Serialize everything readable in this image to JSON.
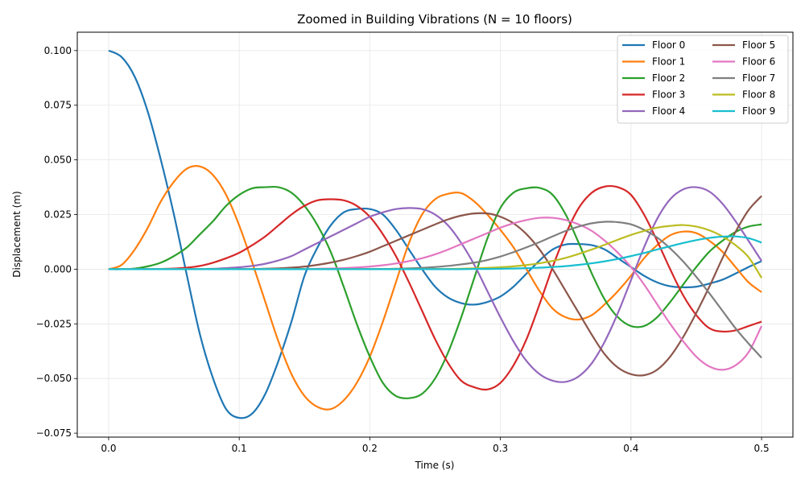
{
  "chart_data": {
    "type": "line",
    "title": "Zoomed in Building Vibrations (N = 10 floors)",
    "xlabel": "Time (s)",
    "ylabel": "Displacement (m)",
    "xlim": [
      -0.024,
      0.524
    ],
    "ylim": [
      -0.0768,
      0.1084
    ],
    "xticks": [
      0.0,
      0.1,
      0.2,
      0.3,
      0.4,
      0.5
    ],
    "xtick_labels": [
      "0.0",
      "0.1",
      "0.2",
      "0.3",
      "0.4",
      "0.5"
    ],
    "yticks": [
      -0.075,
      -0.05,
      -0.025,
      0.0,
      0.025,
      0.05,
      0.075,
      0.1
    ],
    "ytick_labels": [
      "−0.075",
      "−0.050",
      "−0.025",
      "0.000",
      "0.025",
      "0.050",
      "0.075",
      "0.100"
    ],
    "grid": true,
    "legend_position": "top-right",
    "legend_columns": 2,
    "x": [
      0.0,
      0.01,
      0.02,
      0.03,
      0.04,
      0.05,
      0.06,
      0.07,
      0.08,
      0.09,
      0.1,
      0.11,
      0.12,
      0.13,
      0.14,
      0.15,
      0.16,
      0.17,
      0.18,
      0.19,
      0.2,
      0.21,
      0.22,
      0.23,
      0.24,
      0.25,
      0.26,
      0.27,
      0.28,
      0.29,
      0.3,
      0.31,
      0.32,
      0.33,
      0.34,
      0.35,
      0.36,
      0.37,
      0.38,
      0.39,
      0.4,
      0.41,
      0.42,
      0.43,
      0.44,
      0.45,
      0.46,
      0.47,
      0.48,
      0.49,
      0.5
    ],
    "series": [
      {
        "name": "Floor 0",
        "color": "#1f77b4",
        "values": [
          0.1,
          0.097,
          0.088,
          0.072,
          0.05,
          0.025,
          -0.003,
          -0.03,
          -0.05,
          -0.064,
          -0.068,
          -0.066,
          -0.057,
          -0.042,
          -0.024,
          -0.003,
          0.01,
          0.02,
          0.026,
          0.0275,
          0.0275,
          0.025,
          0.018,
          0.009,
          0.0,
          -0.008,
          -0.013,
          -0.0155,
          -0.0162,
          -0.015,
          -0.0125,
          -0.008,
          -0.002,
          0.004,
          0.009,
          0.0113,
          0.0115,
          0.011,
          0.009,
          0.005,
          0.001,
          -0.003,
          -0.006,
          -0.0078,
          -0.0083,
          -0.008,
          -0.0066,
          -0.0048,
          -0.002,
          0.001,
          0.0037
        ]
      },
      {
        "name": "Floor 1",
        "color": "#ff7f0e",
        "values": [
          0.0,
          0.002,
          0.009,
          0.019,
          0.031,
          0.04,
          0.046,
          0.047,
          0.043,
          0.034,
          0.02,
          0.003,
          -0.015,
          -0.033,
          -0.048,
          -0.058,
          -0.063,
          -0.064,
          -0.06,
          -0.052,
          -0.04,
          -0.024,
          -0.006,
          0.012,
          0.025,
          0.032,
          0.0345,
          0.0348,
          0.031,
          0.025,
          0.018,
          0.01,
          0.0,
          -0.01,
          -0.018,
          -0.022,
          -0.023,
          -0.021,
          -0.016,
          -0.01,
          -0.003,
          0.005,
          0.011,
          0.0155,
          0.0172,
          0.0165,
          0.013,
          0.008,
          0.001,
          -0.006,
          -0.0105
        ]
      },
      {
        "name": "Floor 2",
        "color": "#2ca02c",
        "values": [
          0.0,
          0.0,
          0.0003,
          0.0013,
          0.003,
          0.006,
          0.01,
          0.016,
          0.022,
          0.029,
          0.034,
          0.037,
          0.0375,
          0.0375,
          0.035,
          0.029,
          0.02,
          0.008,
          -0.008,
          -0.025,
          -0.04,
          -0.052,
          -0.058,
          -0.059,
          -0.057,
          -0.05,
          -0.038,
          -0.022,
          -0.004,
          0.014,
          0.028,
          0.035,
          0.037,
          0.0372,
          0.034,
          0.025,
          0.012,
          -0.002,
          -0.014,
          -0.022,
          -0.026,
          -0.026,
          -0.022,
          -0.015,
          -0.007,
          0.001,
          0.008,
          0.013,
          0.017,
          0.0195,
          0.0205
        ]
      },
      {
        "name": "Floor 3",
        "color": "#d62728",
        "values": [
          0.0,
          0.0,
          0.0,
          0.0,
          0.0001,
          0.0003,
          0.0007,
          0.0015,
          0.003,
          0.005,
          0.0075,
          0.011,
          0.015,
          0.02,
          0.025,
          0.029,
          0.0315,
          0.032,
          0.0315,
          0.029,
          0.024,
          0.016,
          0.006,
          -0.006,
          -0.019,
          -0.032,
          -0.043,
          -0.051,
          -0.054,
          -0.055,
          -0.052,
          -0.044,
          -0.032,
          -0.016,
          0.001,
          0.016,
          0.028,
          0.035,
          0.0378,
          0.0375,
          0.034,
          0.025,
          0.013,
          0.0,
          -0.012,
          -0.021,
          -0.027,
          -0.0285,
          -0.028,
          -0.026,
          -0.024
        ]
      },
      {
        "name": "Floor 4",
        "color": "#9467bd",
        "values": [
          0.0,
          0.0,
          0.0,
          0.0,
          0.0,
          0.0,
          0.0,
          0.0001,
          0.0002,
          0.0005,
          0.0009,
          0.0015,
          0.0025,
          0.004,
          0.006,
          0.009,
          0.012,
          0.015,
          0.018,
          0.021,
          0.024,
          0.026,
          0.0275,
          0.028,
          0.0275,
          0.025,
          0.02,
          0.012,
          0.002,
          -0.01,
          -0.022,
          -0.033,
          -0.042,
          -0.048,
          -0.051,
          -0.0515,
          -0.049,
          -0.043,
          -0.033,
          -0.02,
          -0.005,
          0.01,
          0.023,
          0.032,
          0.0365,
          0.0375,
          0.0355,
          0.03,
          0.022,
          0.013,
          0.0038
        ]
      },
      {
        "name": "Floor 5",
        "color": "#8c564b",
        "values": [
          0.0,
          0.0,
          0.0,
          0.0,
          0.0,
          0.0,
          0.0,
          0.0,
          0.0,
          0.0,
          0.0,
          0.0001,
          0.0002,
          0.0004,
          0.0007,
          0.0012,
          0.002,
          0.003,
          0.0043,
          0.006,
          0.008,
          0.0105,
          0.013,
          0.0155,
          0.018,
          0.0205,
          0.0228,
          0.0245,
          0.0255,
          0.0255,
          0.024,
          0.021,
          0.016,
          0.009,
          0.0,
          -0.01,
          -0.02,
          -0.03,
          -0.039,
          -0.045,
          -0.048,
          -0.0485,
          -0.046,
          -0.04,
          -0.031,
          -0.02,
          -0.008,
          0.005,
          0.017,
          0.027,
          0.0335
        ]
      },
      {
        "name": "Floor 6",
        "color": "#e377c2",
        "values": [
          0.0,
          0.0,
          0.0,
          0.0,
          0.0,
          0.0,
          0.0,
          0.0,
          0.0,
          0.0,
          0.0,
          0.0,
          0.0,
          0.0,
          0.0001,
          0.0001,
          0.0002,
          0.0003,
          0.0005,
          0.0008,
          0.0012,
          0.0018,
          0.0026,
          0.0037,
          0.005,
          0.0068,
          0.009,
          0.0115,
          0.014,
          0.0165,
          0.019,
          0.021,
          0.0225,
          0.0235,
          0.0235,
          0.0225,
          0.0205,
          0.0175,
          0.013,
          0.0075,
          0.001,
          -0.007,
          -0.016,
          -0.025,
          -0.033,
          -0.04,
          -0.0445,
          -0.046,
          -0.044,
          -0.038,
          -0.026
        ]
      },
      {
        "name": "Floor 7",
        "color": "#7f7f7f",
        "values": [
          0.0,
          0.0,
          0.0,
          0.0,
          0.0,
          0.0,
          0.0,
          0.0,
          0.0,
          0.0,
          0.0,
          0.0,
          0.0,
          0.0,
          0.0,
          0.0,
          0.0,
          0.0,
          0.0,
          0.0,
          0.0001,
          0.0001,
          0.0002,
          0.0004,
          0.0006,
          0.001,
          0.0015,
          0.0022,
          0.003,
          0.0042,
          0.0058,
          0.0078,
          0.01,
          0.0124,
          0.015,
          0.0175,
          0.0195,
          0.021,
          0.0217,
          0.0215,
          0.0205,
          0.018,
          0.0145,
          0.0095,
          0.0035,
          -0.0035,
          -0.011,
          -0.019,
          -0.027,
          -0.034,
          -0.0405
        ]
      },
      {
        "name": "Floor 8",
        "color": "#bcbd22",
        "values": [
          0.0,
          0.0,
          0.0,
          0.0,
          0.0,
          0.0,
          0.0,
          0.0,
          0.0,
          0.0,
          0.0,
          0.0,
          0.0,
          0.0,
          0.0,
          0.0,
          0.0,
          0.0,
          0.0,
          0.0,
          0.0,
          0.0,
          0.0,
          0.0,
          0.0,
          0.0001,
          0.0001,
          0.0002,
          0.0004,
          0.0006,
          0.0009,
          0.0013,
          0.0019,
          0.0027,
          0.0038,
          0.0052,
          0.007,
          0.009,
          0.0112,
          0.0135,
          0.0157,
          0.0175,
          0.019,
          0.0198,
          0.0202,
          0.0195,
          0.0178,
          0.015,
          0.011,
          0.0055,
          -0.004
        ]
      },
      {
        "name": "Floor 9",
        "color": "#17becf",
        "values": [
          0.0,
          0.0,
          0.0,
          0.0,
          0.0,
          0.0,
          0.0,
          0.0,
          0.0,
          0.0,
          0.0,
          0.0,
          0.0,
          0.0,
          0.0,
          0.0,
          0.0,
          0.0,
          0.0,
          0.0,
          0.0,
          0.0,
          0.0,
          0.0,
          0.0,
          0.0,
          0.0,
          0.0,
          0.0001,
          0.0001,
          0.0002,
          0.0003,
          0.0005,
          0.0007,
          0.001,
          0.0014,
          0.002,
          0.0027,
          0.0036,
          0.0047,
          0.006,
          0.0074,
          0.009,
          0.0105,
          0.012,
          0.0133,
          0.0143,
          0.0149,
          0.015,
          0.0142,
          0.0122
        ]
      }
    ]
  }
}
